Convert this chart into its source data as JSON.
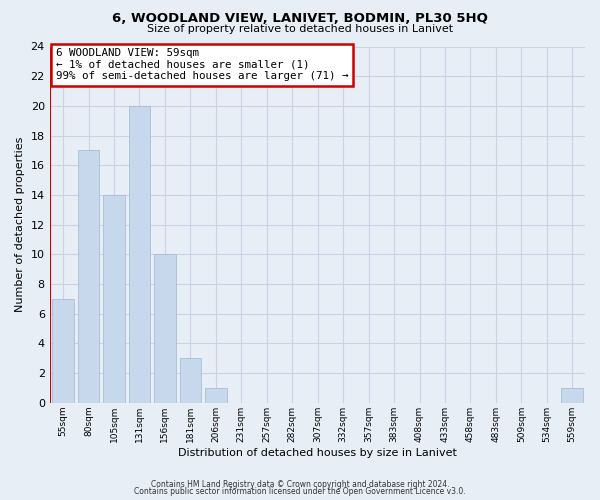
{
  "title": "6, WOODLAND VIEW, LANIVET, BODMIN, PL30 5HQ",
  "subtitle": "Size of property relative to detached houses in Lanivet",
  "xlabel": "Distribution of detached houses by size in Lanivet",
  "ylabel": "Number of detached properties",
  "bar_labels": [
    "55sqm",
    "80sqm",
    "105sqm",
    "131sqm",
    "156sqm",
    "181sqm",
    "206sqm",
    "231sqm",
    "257sqm",
    "282sqm",
    "307sqm",
    "332sqm",
    "357sqm",
    "383sqm",
    "408sqm",
    "433sqm",
    "458sqm",
    "483sqm",
    "509sqm",
    "534sqm",
    "559sqm"
  ],
  "bar_values": [
    7,
    17,
    14,
    20,
    10,
    3,
    1,
    0,
    0,
    0,
    0,
    0,
    0,
    0,
    0,
    0,
    0,
    0,
    0,
    0,
    1
  ],
  "bar_color": "#c8d8ec",
  "bar_edge_color": "#a0b8d0",
  "highlight_color": "#cc0000",
  "ylim": [
    0,
    24
  ],
  "yticks": [
    0,
    2,
    4,
    6,
    8,
    10,
    12,
    14,
    16,
    18,
    20,
    22,
    24
  ],
  "annotation_title": "6 WOODLAND VIEW: 59sqm",
  "annotation_line1": "← 1% of detached houses are smaller (1)",
  "annotation_line2": "99% of semi-detached houses are larger (71) →",
  "annotation_box_color": "#ffffff",
  "annotation_box_edge": "#cc0000",
  "footer1": "Contains HM Land Registry data © Crown copyright and database right 2024.",
  "footer2": "Contains public sector information licensed under the Open Government Licence v3.0.",
  "grid_color": "#c8d4e4",
  "bg_color": "#e8eef6"
}
